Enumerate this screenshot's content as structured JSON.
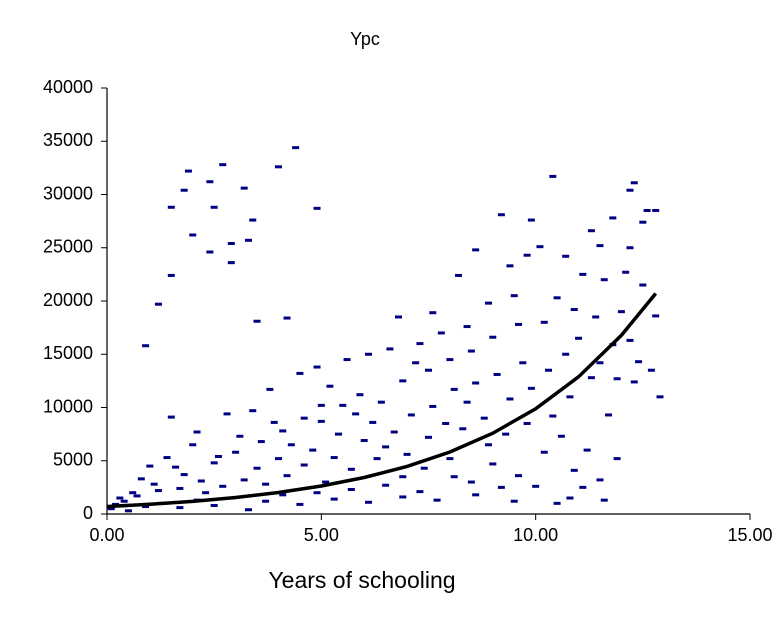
{
  "chart_data": {
    "type": "scatter",
    "title": "Ypc",
    "x_label": "Years of schooling",
    "xlim": [
      0,
      15
    ],
    "xticks": [
      {
        "value": 0,
        "label": "0.00"
      },
      {
        "value": 5,
        "label": "5.00"
      },
      {
        "value": 10,
        "label": "10.00"
      },
      {
        "value": 15,
        "label": "15.00"
      }
    ],
    "ylim": [
      0,
      40000
    ],
    "yticks": [
      0,
      5000,
      10000,
      15000,
      20000,
      25000,
      30000,
      35000,
      40000
    ],
    "series": [
      {
        "mode": "markers",
        "color": "#000080",
        "x": [
          1.9,
          2.7,
          1.8,
          2.4,
          1.5,
          2.5,
          3.2,
          3.4,
          2.0,
          2.9,
          3.3,
          2.4,
          2.9,
          1.5,
          1.2,
          0.9,
          4.0,
          4.4,
          4.9,
          3.5,
          4.2,
          1.5,
          10.4,
          12.3,
          12.2,
          9.2,
          9.9,
          11.8,
          12.6,
          12.8,
          12.5,
          11.3,
          10.1,
          8.6,
          9.8,
          9.4,
          10.7,
          11.1,
          11.6,
          12.1,
          11.5,
          12.2,
          8.2,
          7.6,
          12.8,
          12.9,
          12.3,
          11.7,
          11.8,
          10.5,
          10.9,
          9.5,
          8.9,
          8.4,
          4.5,
          4.9,
          5.6,
          6.1,
          6.6,
          7.3,
          7.8,
          5.2,
          5.9,
          6.4,
          6.9,
          7.5,
          8.0,
          8.5,
          9.0,
          9.6,
          10.2,
          11.0,
          11.4,
          12.0,
          12.5,
          3.8,
          3.4,
          2.8,
          3.6,
          4.1,
          4.6,
          5.0,
          5.4,
          5.8,
          6.2,
          6.7,
          7.1,
          7.6,
          8.1,
          8.6,
          9.1,
          9.7,
          10.3,
          10.8,
          11.3,
          11.9,
          12.4,
          8.3,
          8.8,
          9.3,
          9.8,
          10.6,
          11.2,
          11.9,
          11.5,
          10.9,
          10.2,
          9.6,
          9.0,
          8.5,
          8.0,
          7.4,
          6.9,
          6.3,
          5.7,
          5.1,
          4.6,
          4.2,
          3.7,
          3.2,
          2.7,
          2.2,
          1.7,
          1.2,
          0.7,
          0.4,
          0.2,
          0.1,
          0.5,
          0.9,
          1.3,
          1.7,
          2.1,
          2.5,
          2.9,
          3.3,
          3.7,
          4.1,
          4.5,
          4.9,
          5.3,
          5.7,
          6.1,
          6.5,
          6.9,
          7.3,
          7.7,
          8.1,
          8.6,
          9.2,
          9.5,
          10.0,
          10.5,
          10.8,
          11.1,
          11.6,
          1.0,
          1.4,
          2.0,
          2.5,
          3.0,
          1.1,
          0.6,
          0.3,
          1.8,
          2.3,
          2.6,
          3.1,
          3.5,
          4.0,
          4.3,
          4.8,
          5.3,
          5.5,
          6.0,
          6.5,
          7.0,
          7.5,
          7.9,
          8.4,
          8.9,
          9.4,
          9.9,
          10.4,
          10.7,
          11.5,
          12.2,
          12.7,
          6.8,
          7.2,
          5.0,
          3.9,
          2.1,
          1.6,
          0.8
        ],
        "values": [
          32200,
          32800,
          30400,
          31200,
          28800,
          28800,
          30600,
          27600,
          26200,
          25400,
          25700,
          24600,
          23600,
          22400,
          19700,
          15800,
          32600,
          34400,
          28700,
          18100,
          18400,
          9100,
          31700,
          31100,
          30400,
          28100,
          27600,
          27800,
          28500,
          28500,
          27400,
          26600,
          25100,
          24800,
          24300,
          23300,
          24200,
          22500,
          22000,
          22700,
          25200,
          25000,
          22400,
          18900,
          18600,
          11000,
          12400,
          9300,
          15900,
          20300,
          19200,
          20500,
          19800,
          17600,
          13200,
          13800,
          14500,
          15000,
          15500,
          16000,
          17000,
          12000,
          11200,
          10500,
          12500,
          13500,
          14500,
          15300,
          16600,
          17800,
          18000,
          16500,
          18500,
          19000,
          21500,
          11700,
          9700,
          9400,
          6800,
          7800,
          9000,
          8700,
          7500,
          9400,
          8600,
          7700,
          9300,
          10100,
          11700,
          12300,
          13100,
          14200,
          13500,
          11000,
          12800,
          12700,
          14300,
          8000,
          9000,
          7500,
          8500,
          7300,
          6000,
          5200,
          3200,
          4100,
          5800,
          3600,
          4700,
          3000,
          5200,
          4300,
          3500,
          5200,
          4200,
          3000,
          4600,
          3600,
          2800,
          3200,
          2600,
          3100,
          2400,
          2200,
          1700,
          1200,
          900,
          500,
          300,
          700,
          1000,
          600,
          1300,
          800,
          1500,
          400,
          1200,
          1800,
          900,
          2000,
          1400,
          2300,
          1100,
          2700,
          1600,
          2100,
          1300,
          3500,
          1800,
          2500,
          1200,
          2600,
          1000,
          1500,
          2500,
          1300,
          4500,
          5300,
          6500,
          4800,
          5800,
          2800,
          2000,
          1500,
          3700,
          2000,
          5400,
          7300,
          4300,
          5200,
          6500,
          6000,
          5300,
          10200,
          6900,
          6300,
          5600,
          7200,
          8500,
          10500,
          6500,
          10800,
          11800,
          9200,
          15000,
          14200,
          16300,
          13500,
          18500,
          14200,
          10200,
          8600,
          7700,
          4400,
          3300
        ]
      },
      {
        "mode": "line",
        "color": "#000000",
        "x": [
          0,
          1,
          2,
          3,
          4,
          5,
          6,
          7,
          8,
          9,
          10,
          11,
          12,
          12.8
        ],
        "values": [
          700,
          912,
          1189,
          1549,
          2019,
          2631,
          3428,
          4467,
          5821,
          7585,
          9884,
          12880,
          16784,
          20700
        ]
      }
    ]
  }
}
